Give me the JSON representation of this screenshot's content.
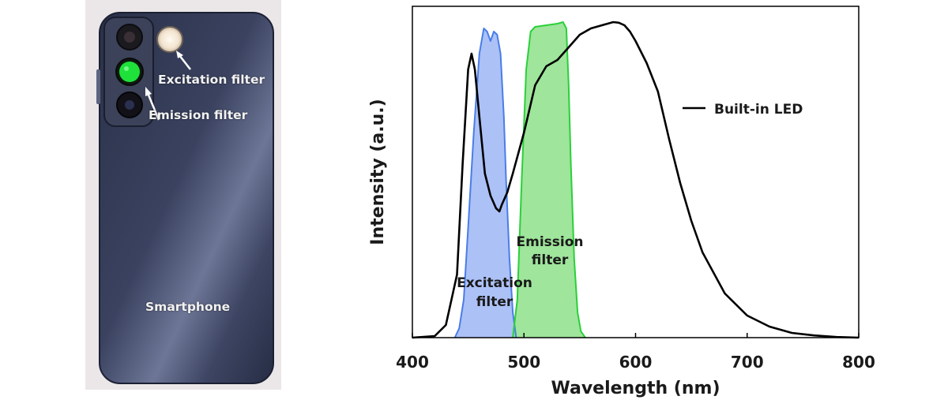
{
  "photo": {
    "excitation_label": "Excitation filter",
    "emission_label": "Emission filter",
    "device_label": "Smartphone",
    "emission_filter_color": "#1ee23a",
    "excitation_filter_color": "#f3e4cf",
    "body_color": "#2e3650"
  },
  "chart_data": {
    "type": "line",
    "xlabel": "Wavelength (nm)",
    "ylabel": "Intensity (a.u.)",
    "xlim": [
      400,
      800
    ],
    "ylim": [
      0,
      1
    ],
    "x_ticks": [
      "400",
      "500",
      "600",
      "700",
      "800"
    ],
    "grid": false,
    "legend": {
      "position": "top-right",
      "entry": "Built-in LED"
    },
    "annotations": {
      "excitation": [
        "Excitation",
        "filter"
      ],
      "emission": [
        "Emission",
        "filter"
      ]
    },
    "series": [
      {
        "name": "Built-in LED",
        "color": "#000000",
        "x": [
          400,
          420,
          430,
          440,
          445,
          450,
          453,
          456,
          460,
          465,
          470,
          475,
          478,
          480,
          485,
          490,
          500,
          510,
          520,
          530,
          540,
          550,
          560,
          570,
          575,
          580,
          585,
          590,
          595,
          600,
          610,
          620,
          630,
          640,
          650,
          660,
          680,
          700,
          720,
          740,
          760,
          780,
          800
        ],
        "values": [
          0.0,
          0.005,
          0.04,
          0.2,
          0.55,
          0.85,
          0.9,
          0.85,
          0.7,
          0.52,
          0.45,
          0.41,
          0.4,
          0.42,
          0.46,
          0.52,
          0.65,
          0.8,
          0.86,
          0.88,
          0.92,
          0.96,
          0.98,
          0.99,
          0.995,
          1.0,
          0.998,
          0.99,
          0.97,
          0.94,
          0.87,
          0.78,
          0.63,
          0.49,
          0.37,
          0.27,
          0.14,
          0.07,
          0.035,
          0.015,
          0.007,
          0.002,
          0.0
        ]
      },
      {
        "name": "Excitation filter",
        "color": "#4a7de8",
        "fill": "#9db6f4",
        "x": [
          438,
          442,
          446,
          450,
          455,
          460,
          464,
          467,
          470,
          473,
          476,
          479,
          482,
          484,
          487,
          490,
          493
        ],
        "values": [
          0.0,
          0.03,
          0.12,
          0.35,
          0.65,
          0.9,
          0.98,
          0.97,
          0.94,
          0.97,
          0.96,
          0.9,
          0.7,
          0.5,
          0.25,
          0.08,
          0.0
        ]
      },
      {
        "name": "Emission filter",
        "color": "#2ad03a",
        "fill": "#8ee08a",
        "x": [
          490,
          494,
          498,
          502,
          506,
          510,
          520,
          530,
          535,
          538,
          540,
          542,
          545,
          548,
          551,
          555
        ],
        "values": [
          0.0,
          0.12,
          0.5,
          0.85,
          0.97,
          0.985,
          0.99,
          0.995,
          1.0,
          0.98,
          0.8,
          0.55,
          0.25,
          0.08,
          0.02,
          0.0
        ]
      }
    ]
  }
}
